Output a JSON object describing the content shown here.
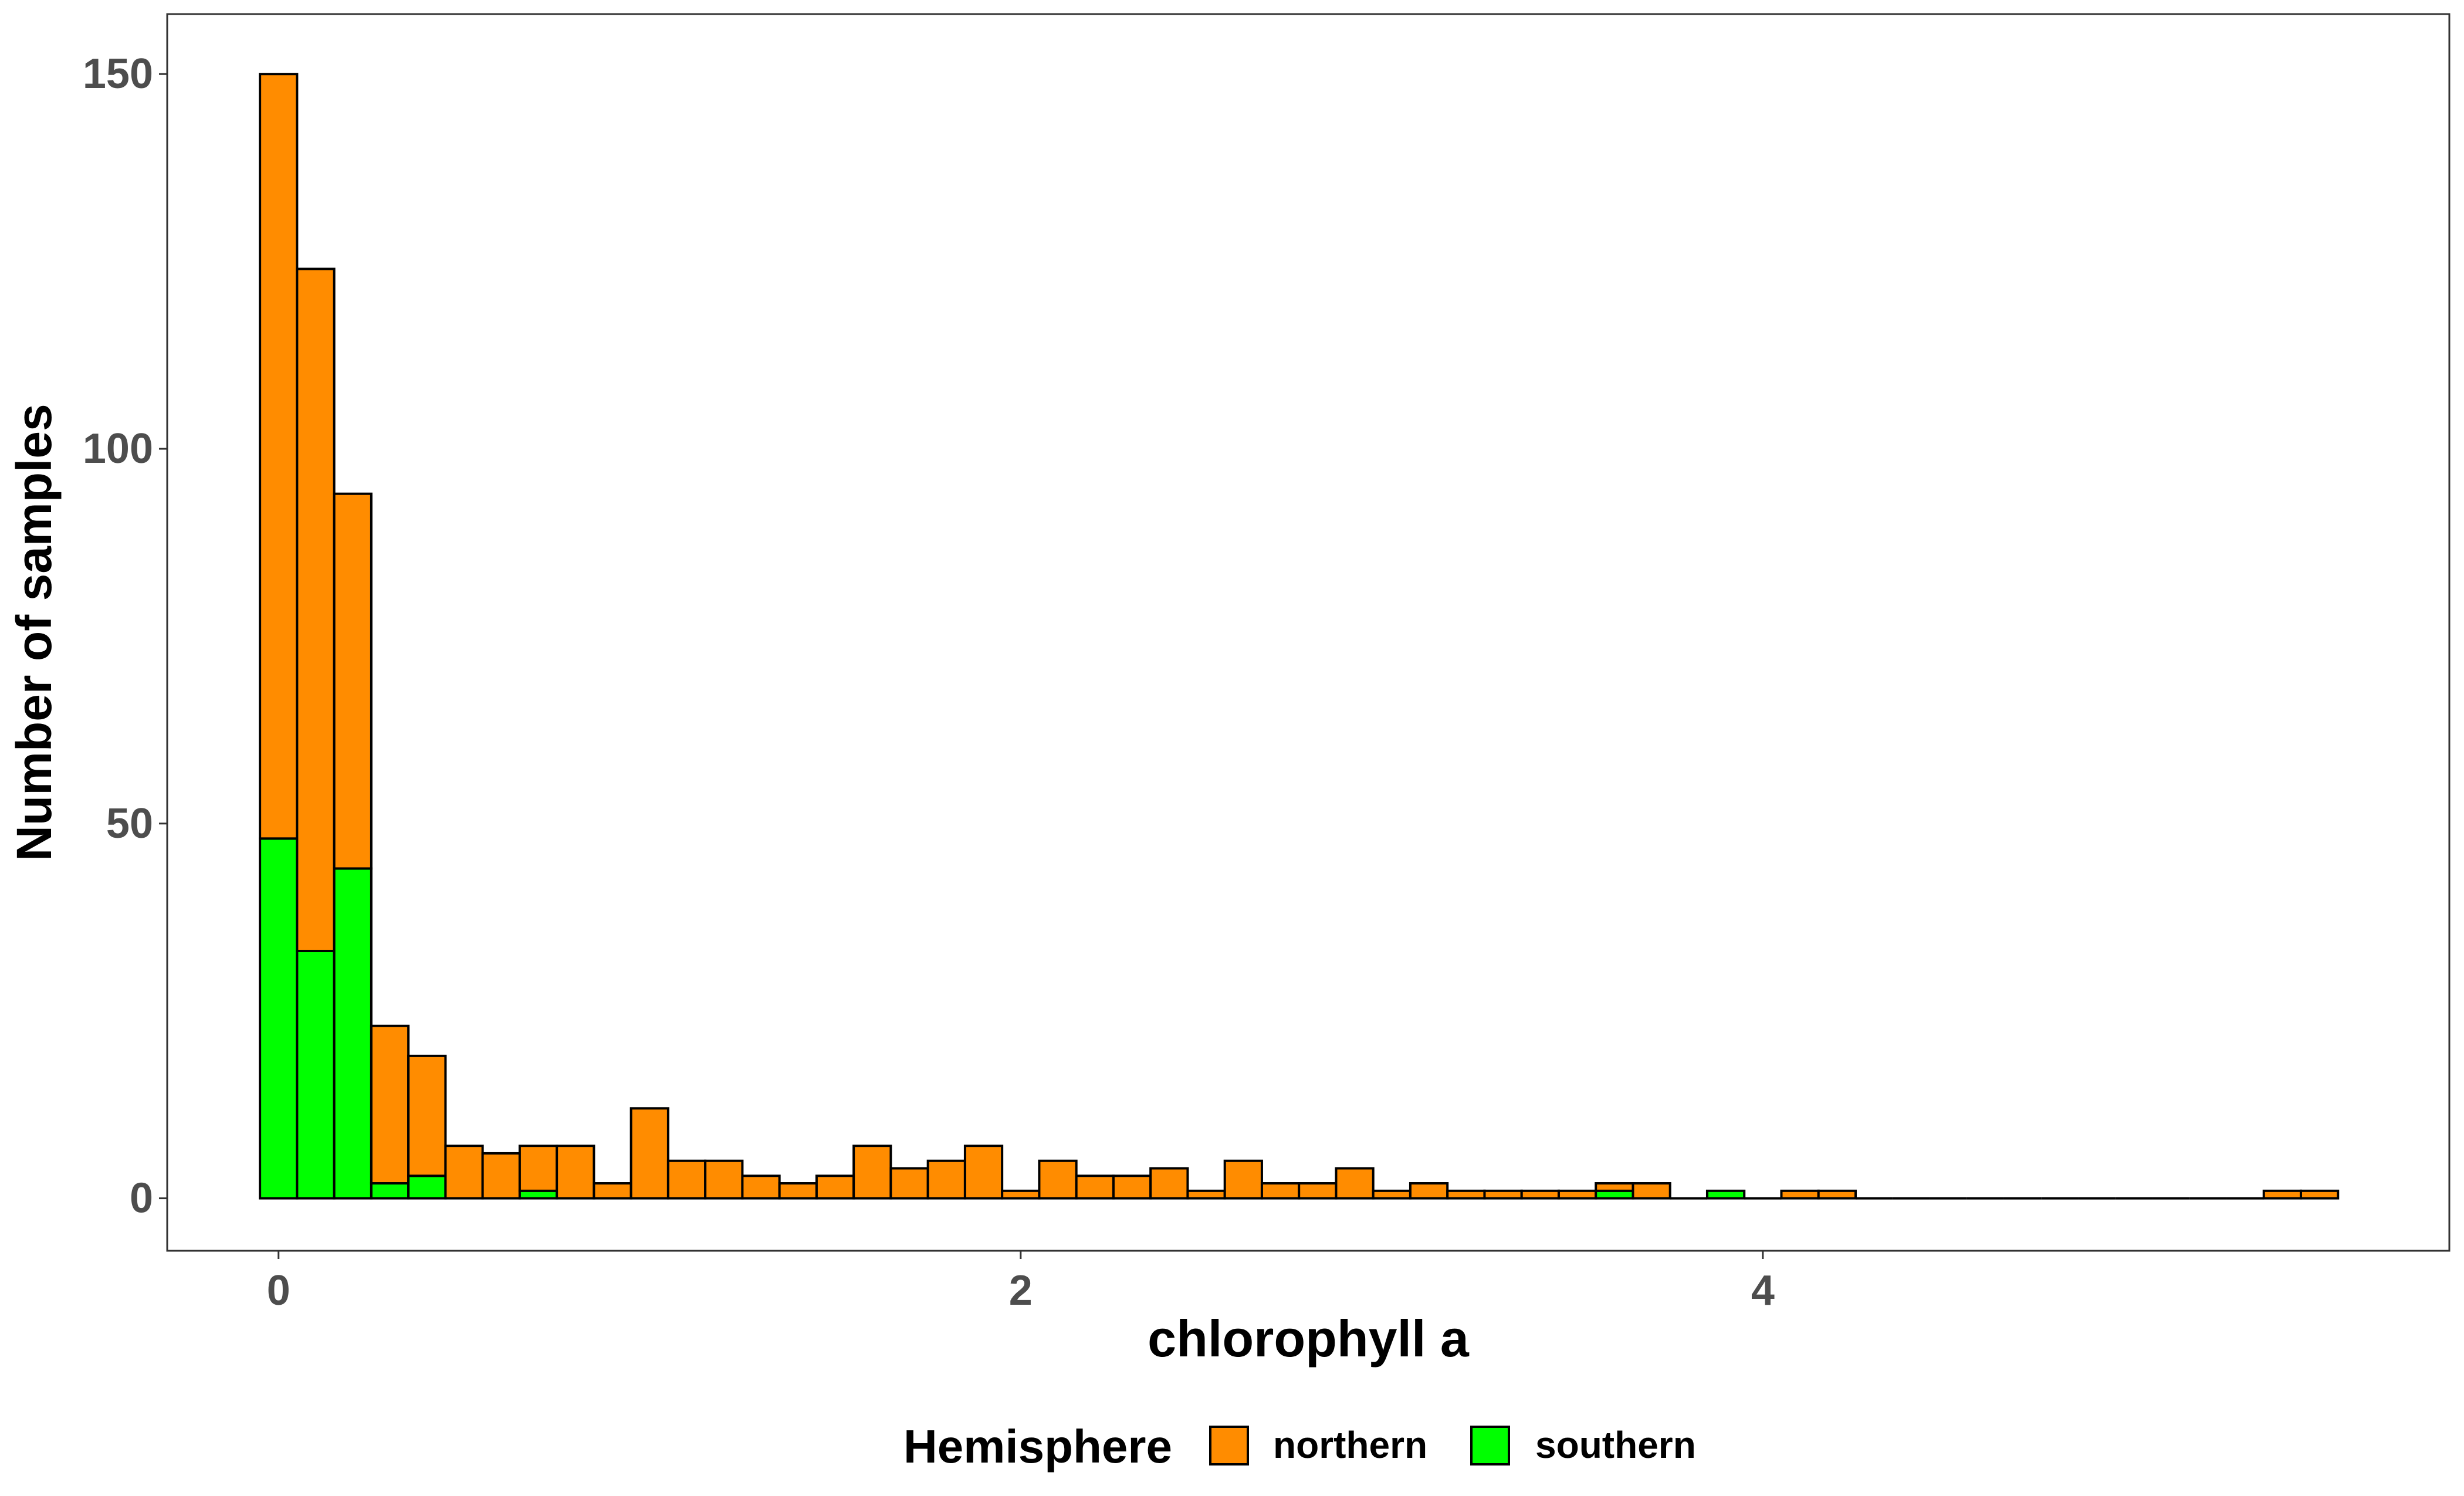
{
  "chart_data": {
    "type": "bar",
    "stacked": true,
    "xlabel": "chlorophyll a",
    "ylabel": "Number of samples",
    "xlim": [
      -0.3,
      5.85
    ],
    "ylim": [
      -7,
      158
    ],
    "x_ticks": [
      0,
      2,
      4
    ],
    "y_ticks": [
      0,
      50,
      100,
      150
    ],
    "grid": false,
    "bin_width": 0.1,
    "bin_starts": [
      -0.05,
      0.05,
      0.15,
      0.25,
      0.35,
      0.45,
      0.55,
      0.65,
      0.75,
      0.85,
      0.95,
      1.05,
      1.15,
      1.25,
      1.35,
      1.45,
      1.55,
      1.65,
      1.75,
      1.85,
      1.95,
      2.05,
      2.15,
      2.25,
      2.35,
      2.45,
      2.55,
      2.65,
      2.75,
      2.85,
      2.95,
      3.05,
      3.15,
      3.25,
      3.35,
      3.45,
      3.55,
      3.65,
      3.75,
      3.85,
      3.95,
      4.05,
      4.15,
      4.25,
      4.35,
      4.45,
      4.55,
      4.65,
      4.75,
      4.85,
      4.95,
      5.05,
      5.15,
      5.25,
      5.35,
      5.45
    ],
    "series": [
      {
        "name": "southern",
        "color": "#00FF00",
        "values": [
          48,
          33,
          44,
          2,
          3,
          0,
          0,
          1,
          0,
          0,
          0,
          0,
          0,
          0,
          0,
          0,
          0,
          0,
          0,
          0,
          0,
          0,
          0,
          0,
          0,
          0,
          0,
          0,
          0,
          0,
          0,
          0,
          0,
          0,
          0,
          0,
          1,
          0,
          0,
          1,
          0,
          0,
          0,
          0,
          0,
          0,
          0,
          0,
          0,
          0,
          0,
          0,
          0,
          0,
          0,
          0
        ]
      },
      {
        "name": "northern",
        "color": "#FF8C00",
        "values": [
          102,
          91,
          50,
          21,
          16,
          7,
          6,
          6,
          7,
          2,
          12,
          5,
          5,
          3,
          2,
          3,
          7,
          4,
          5,
          7,
          1,
          5,
          3,
          3,
          4,
          1,
          5,
          2,
          2,
          4,
          1,
          2,
          1,
          1,
          1,
          1,
          1,
          2,
          0,
          0,
          0,
          1,
          1,
          0,
          0,
          0,
          0,
          0,
          0,
          0,
          0,
          0,
          0,
          0,
          1,
          1
        ]
      }
    ],
    "legend": {
      "position": "bottom",
      "title": "Hemisphere",
      "items": [
        "northern",
        "southern"
      ]
    }
  }
}
